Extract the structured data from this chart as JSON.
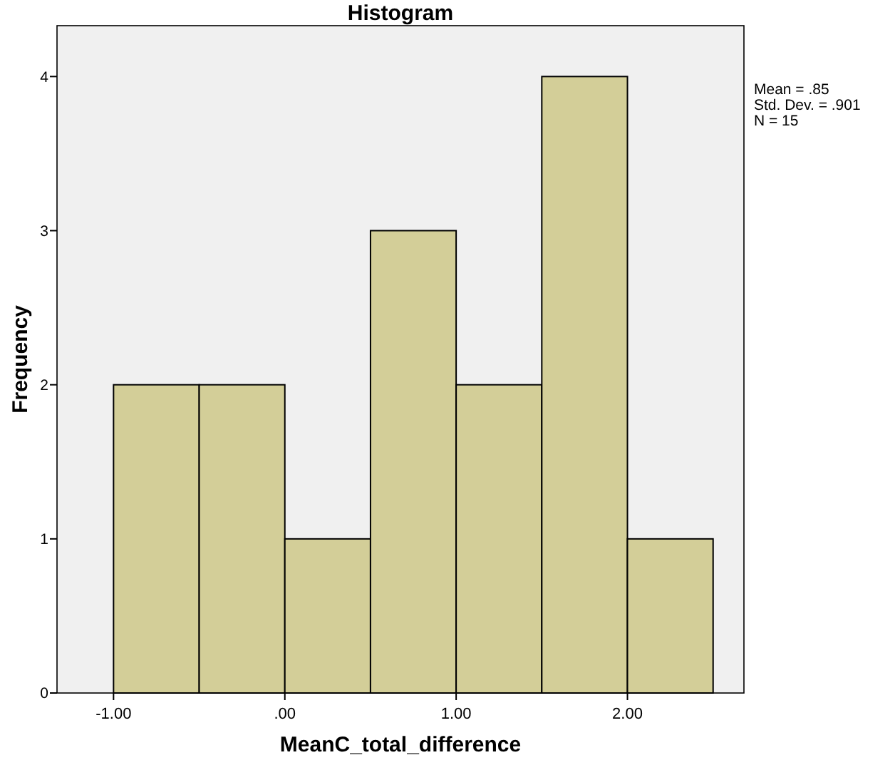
{
  "chart_data": {
    "type": "histogram",
    "title": "Histogram",
    "xlabel": "MeanC_total_difference",
    "ylabel": "Frequency",
    "bins": [
      -1.0,
      -0.5,
      0.0,
      0.5,
      1.0,
      1.5,
      2.0,
      2.5
    ],
    "values": [
      2,
      2,
      1,
      3,
      2,
      4,
      1
    ],
    "color": "#d3ce98",
    "xlim": [
      -1.33,
      2.68
    ],
    "ylim": [
      0,
      4.33
    ],
    "xticks": [
      {
        "value": -1,
        "label": "-1.00"
      },
      {
        "value": 0,
        "label": ".00"
      },
      {
        "value": 1,
        "label": "1.00"
      },
      {
        "value": 2,
        "label": "2.00"
      }
    ],
    "yticks": [
      0,
      1,
      2,
      3,
      4
    ],
    "annotations": [
      "Mean = .85",
      "Std. Dev. = .901",
      "N = 15"
    ]
  }
}
